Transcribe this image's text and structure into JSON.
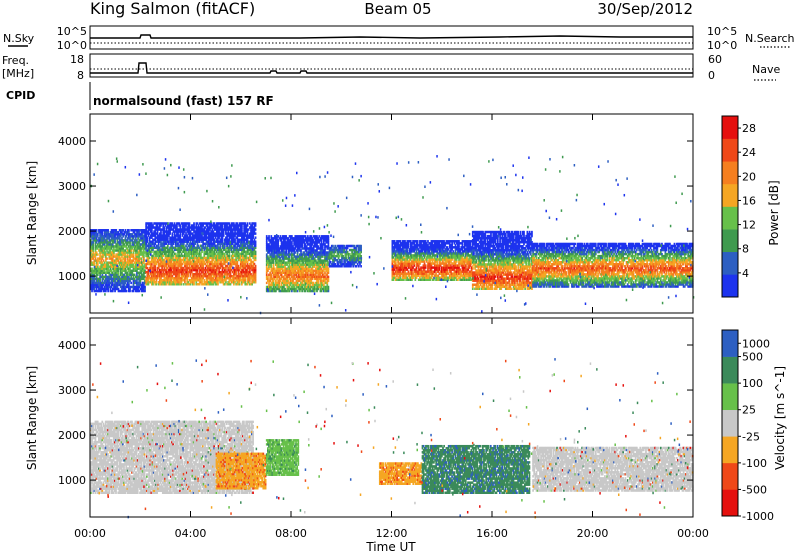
{
  "header": {
    "station": "King Salmon (fitACF)",
    "beam": "Beam 05",
    "date": "30/Sep/2012"
  },
  "summary_panels": {
    "nsky_label": "N.Sky",
    "nsearch_label": "N.Search",
    "freq_label_1": "Freq.",
    "freq_label_2": "[MHz]",
    "nave_label": "Nave",
    "cpid_label": "CPID",
    "noise_ticks_left": [
      "10^5",
      "10^0"
    ],
    "noise_ticks_right": [
      "10^5",
      "10^0"
    ],
    "freq_ticks": [
      "18",
      "8"
    ],
    "nave_ticks": [
      "60",
      "0"
    ],
    "cpid_text": "normalsound (fast) 157 RF"
  },
  "x_axis": {
    "label": "Time UT",
    "ticks": [
      "00:00",
      "04:00",
      "08:00",
      "12:00",
      "16:00",
      "20:00",
      "00:00"
    ]
  },
  "colors": {
    "power": [
      "#1d33ee",
      "#2d5fc2",
      "#3f9a4f",
      "#67c04a",
      "#f5a623",
      "#f57f1f",
      "#ef4818",
      "#e5100e"
    ],
    "velocity": [
      "#e5100e",
      "#ef4818",
      "#f5a623",
      "#c8c8c8",
      "#67c04a",
      "#3b8a5a",
      "#2d5fc2"
    ],
    "ground_scatter": "#c8c8c8"
  },
  "chart_data": [
    {
      "type": "heatmap",
      "title": "Power",
      "xlabel": "",
      "ylabel": "Slant Range [km]",
      "xlim": [
        0,
        24
      ],
      "ylim": [
        180,
        4600
      ],
      "yticks": [
        "1000",
        "2000",
        "3000",
        "4000"
      ],
      "colorbar_label": "Power [dB]",
      "colorbar_ticks": [
        "4",
        "8",
        "12",
        "16",
        "20",
        "24",
        "28"
      ],
      "colorbar_range": [
        0,
        30
      ],
      "scatter_bands": [
        {
          "t": [
            0.0,
            2.2
          ],
          "range": [
            650,
            2050
          ],
          "center": 1350,
          "peak_db": 18
        },
        {
          "t": [
            2.2,
            6.6
          ],
          "range": [
            800,
            2200
          ],
          "center": 1100,
          "peak_db": 26
        },
        {
          "t": [
            7.0,
            9.5
          ],
          "range": [
            650,
            1900
          ],
          "center": 1000,
          "peak_db": 22
        },
        {
          "t": [
            9.5,
            10.8
          ],
          "range": [
            1200,
            1700
          ],
          "center": 1450,
          "peak_db": 12
        },
        {
          "t": [
            12.0,
            15.2
          ],
          "range": [
            900,
            1800
          ],
          "center": 1150,
          "peak_db": 28
        },
        {
          "t": [
            15.2,
            17.6
          ],
          "range": [
            700,
            2000
          ],
          "center": 950,
          "peak_db": 26
        },
        {
          "t": [
            17.6,
            24.0
          ],
          "range": [
            750,
            1750
          ],
          "center": 1150,
          "peak_db": 24
        }
      ]
    },
    {
      "type": "heatmap",
      "title": "Velocity",
      "xlabel": "Time UT",
      "ylabel": "Slant Range [km]",
      "xlim": [
        0,
        24
      ],
      "ylim": [
        180,
        4600
      ],
      "yticks": [
        "1000",
        "2000",
        "3000",
        "4000"
      ],
      "colorbar_label": "Velocity [m s^-1]",
      "colorbar_ticks": [
        "1000",
        "500",
        "100",
        "25",
        "-25",
        "-100",
        "-500",
        "-1000"
      ],
      "scatter_bands": [
        {
          "t": [
            0.0,
            6.5
          ],
          "range": [
            700,
            2300
          ],
          "class": "ground"
        },
        {
          "t": [
            5.0,
            7.0
          ],
          "range": [
            800,
            1600
          ],
          "class": "negative"
        },
        {
          "t": [
            7.0,
            8.3
          ],
          "range": [
            1100,
            1900
          ],
          "class": "positive_low"
        },
        {
          "t": [
            11.5,
            13.2
          ],
          "range": [
            900,
            1400
          ],
          "class": "negative"
        },
        {
          "t": [
            13.2,
            17.5
          ],
          "range": [
            700,
            1800
          ],
          "class": "positive_mid"
        },
        {
          "t": [
            17.6,
            24.0
          ],
          "range": [
            750,
            1750
          ],
          "class": "ground"
        }
      ]
    }
  ]
}
